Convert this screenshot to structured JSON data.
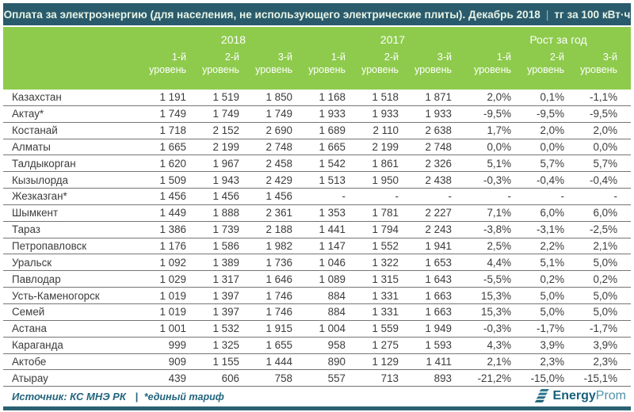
{
  "chart_data": {
    "type": "table",
    "title": "Оплата за электроэнергию (для населения, не использующего электрические плиты). Декабрь 2018",
    "title_separator": "|",
    "unit": "тг за 100 кВт·ч",
    "groups": [
      {
        "label": "2018"
      },
      {
        "label": "2017"
      },
      {
        "label": "Рост за год"
      }
    ],
    "levels": [
      {
        "line1": "1-й",
        "line2": "уровень"
      },
      {
        "line1": "2-й",
        "line2": "уровень"
      },
      {
        "line1": "3-й",
        "line2": "уровень"
      }
    ],
    "rows": [
      {
        "name": "Казахстан",
        "y2018": [
          "1 191",
          "1 519",
          "1 850"
        ],
        "y2017": [
          "1 168",
          "1 518",
          "1 871"
        ],
        "growth": [
          "2,0%",
          "0,1%",
          "-1,1%"
        ]
      },
      {
        "name": "Актау*",
        "y2018": [
          "1 749",
          "1 749",
          "1 749"
        ],
        "y2017": [
          "1 933",
          "1 933",
          "1 933"
        ],
        "growth": [
          "-9,5%",
          "-9,5%",
          "-9,5%"
        ]
      },
      {
        "name": "Костанай",
        "y2018": [
          "1 718",
          "2 152",
          "2 690"
        ],
        "y2017": [
          "1 689",
          "2 110",
          "2 638"
        ],
        "growth": [
          "1,7%",
          "2,0%",
          "2,0%"
        ]
      },
      {
        "name": "Алматы",
        "y2018": [
          "1 665",
          "2 199",
          "2 748"
        ],
        "y2017": [
          "1 665",
          "2 199",
          "2 748"
        ],
        "growth": [
          "0,0%",
          "0,0%",
          "0,0%"
        ]
      },
      {
        "name": "Талдыкорган",
        "y2018": [
          "1 620",
          "1 967",
          "2 458"
        ],
        "y2017": [
          "1 542",
          "1 861",
          "2 326"
        ],
        "growth": [
          "5,1%",
          "5,7%",
          "5,7%"
        ]
      },
      {
        "name": "Кызылорда",
        "y2018": [
          "1 509",
          "1 943",
          "2 429"
        ],
        "y2017": [
          "1 513",
          "1 950",
          "2 438"
        ],
        "growth": [
          "-0,3%",
          "-0,4%",
          "-0,4%"
        ]
      },
      {
        "name": "Жезказган*",
        "y2018": [
          "1 456",
          "1 456",
          "1 456"
        ],
        "y2017": [
          "-",
          "-",
          "-"
        ],
        "growth": [
          "-",
          "-",
          "-"
        ]
      },
      {
        "name": "Шымкент",
        "y2018": [
          "1 449",
          "1 888",
          "2 361"
        ],
        "y2017": [
          "1 353",
          "1 781",
          "2 227"
        ],
        "growth": [
          "7,1%",
          "6,0%",
          "6,0%"
        ]
      },
      {
        "name": "Тараз",
        "y2018": [
          "1 386",
          "1 739",
          "2 188"
        ],
        "y2017": [
          "1 441",
          "1 794",
          "2 243"
        ],
        "growth": [
          "-3,8%",
          "-3,1%",
          "-2,5%"
        ]
      },
      {
        "name": "Петропавловск",
        "y2018": [
          "1 176",
          "1 586",
          "1 982"
        ],
        "y2017": [
          "1 147",
          "1 552",
          "1 941"
        ],
        "growth": [
          "2,5%",
          "2,2%",
          "2,1%"
        ]
      },
      {
        "name": "Уральск",
        "y2018": [
          "1 092",
          "1 389",
          "1 736"
        ],
        "y2017": [
          "1 046",
          "1 322",
          "1 653"
        ],
        "growth": [
          "4,4%",
          "5,1%",
          "5,0%"
        ]
      },
      {
        "name": "Павлодар",
        "y2018": [
          "1 029",
          "1 317",
          "1 646"
        ],
        "y2017": [
          "1 089",
          "1 315",
          "1 643"
        ],
        "growth": [
          "-5,5%",
          "0,2%",
          "0,2%"
        ]
      },
      {
        "name": "Усть-Каменогорск",
        "y2018": [
          "1 019",
          "1 397",
          "1 746"
        ],
        "y2017": [
          "884",
          "1 331",
          "1 663"
        ],
        "growth": [
          "15,3%",
          "5,0%",
          "5,0%"
        ]
      },
      {
        "name": "Семей",
        "y2018": [
          "1 019",
          "1 397",
          "1 746"
        ],
        "y2017": [
          "884",
          "1 331",
          "1 663"
        ],
        "growth": [
          "15,3%",
          "5,0%",
          "5,0%"
        ]
      },
      {
        "name": "Астана",
        "y2018": [
          "1 001",
          "1 532",
          "1 915"
        ],
        "y2017": [
          "1 004",
          "1 559",
          "1 949"
        ],
        "growth": [
          "-0,3%",
          "-1,7%",
          "-1,7%"
        ]
      },
      {
        "name": "Караганда",
        "y2018": [
          "999",
          "1 325",
          "1 655"
        ],
        "y2017": [
          "958",
          "1 275",
          "1 593"
        ],
        "growth": [
          "4,3%",
          "3,9%",
          "3,9%"
        ]
      },
      {
        "name": "Актобе",
        "y2018": [
          "909",
          "1 155",
          "1 444"
        ],
        "y2017": [
          "890",
          "1 129",
          "1 411"
        ],
        "growth": [
          "2,1%",
          "2,3%",
          "2,3%"
        ]
      },
      {
        "name": "Атырау",
        "y2018": [
          "439",
          "606",
          "758"
        ],
        "y2017": [
          "557",
          "713",
          "893"
        ],
        "growth": [
          "-21,2%",
          "-15,0%",
          "-15,1%"
        ]
      }
    ]
  },
  "footer": {
    "source": "Источник: КС МНЭ РК",
    "note_pipe": "|",
    "note": "*единый тариф",
    "logo": {
      "bold": "Energy",
      "light": "Prom"
    }
  },
  "colors": {
    "title_bar_bg": "#2A5B6C",
    "header_green": "#8ECB4D",
    "bottom_bar_teal": "#2A6173",
    "footer_text": "#23657D",
    "table_text": "#3C3C3C"
  }
}
